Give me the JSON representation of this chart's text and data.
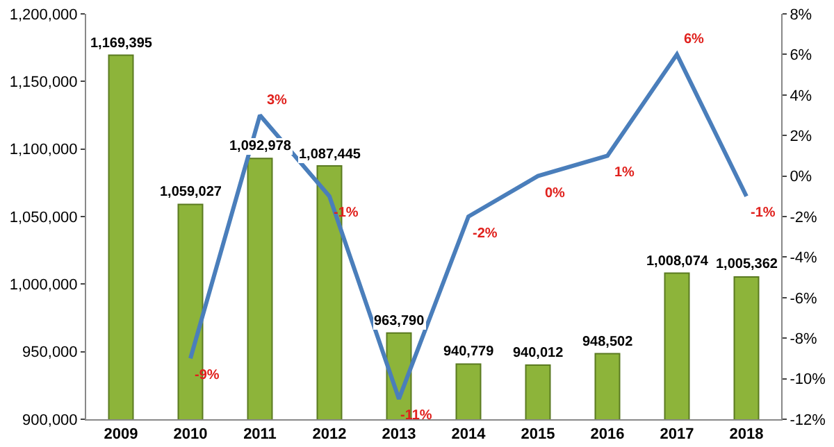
{
  "chart_data": {
    "type": "bar",
    "categories": [
      "2009",
      "2010",
      "2011",
      "2012",
      "2013",
      "2014",
      "2015",
      "2016",
      "2017",
      "2018"
    ],
    "series": [
      {
        "color": "#8db43a",
        "values": [
          1169395,
          1059027,
          1092978,
          1087445,
          963790,
          940779,
          940012,
          948502,
          1008074,
          1005362
        ],
        "value_labels": [
          "1,169,395",
          "1,059,027",
          "1,092,978",
          "1,087,445",
          "963,790",
          "940,779",
          "940,012",
          "948,502",
          "1,008,074",
          "1,005,362"
        ]
      },
      {
        "type": "line",
        "axis": "y2",
        "color": "#4a7ebb",
        "values": [
          null,
          -9,
          3,
          -1,
          -11,
          -2,
          0,
          1,
          6,
          -1
        ],
        "value_labels": [
          null,
          "-9%",
          "3%",
          "-1%",
          "-11%",
          "-2%",
          "0%",
          "1%",
          "6%",
          "-1%"
        ]
      }
    ],
    "ylim": [
      900000,
      1200000
    ],
    "yticks": [
      {
        "value": 900000,
        "label": "900,000"
      },
      {
        "value": 950000,
        "label": "950,000"
      },
      {
        "value": 1000000,
        "label": "1,000,000"
      },
      {
        "value": 1050000,
        "label": "1,050,000"
      },
      {
        "value": 1100000,
        "label": "1,100,000"
      },
      {
        "value": 1150000,
        "label": "1,150,000"
      },
      {
        "value": 1200000,
        "label": "1,200,000"
      }
    ],
    "y2lim": [
      -12,
      8
    ],
    "y2ticks": [
      {
        "value": -12,
        "label": "-12%"
      },
      {
        "value": -10,
        "label": "-10%"
      },
      {
        "value": -8,
        "label": "-8%"
      },
      {
        "value": -6,
        "label": "-6%"
      },
      {
        "value": -4,
        "label": "-4%"
      },
      {
        "value": -2,
        "label": "-2%"
      },
      {
        "value": 0,
        "label": "0%"
      },
      {
        "value": 2,
        "label": "2%"
      },
      {
        "value": 4,
        "label": "4%"
      },
      {
        "value": 6,
        "label": "6%"
      },
      {
        "value": 8,
        "label": "8%"
      }
    ],
    "grid": false,
    "legend": false,
    "marker": "none",
    "line_style": "solid"
  }
}
